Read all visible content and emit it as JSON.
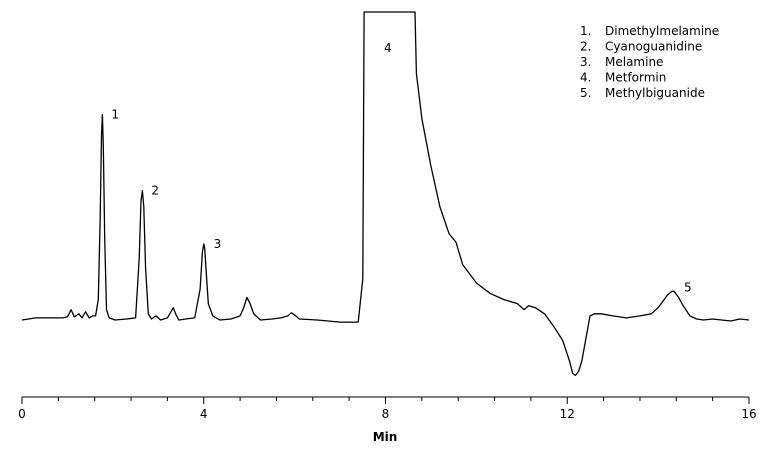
{
  "chart_data": {
    "type": "line",
    "title": "",
    "xlabel": "Min",
    "ylabel": "",
    "xlim": [
      0,
      16
    ],
    "ylim": [
      -0.35,
      1.7
    ],
    "x_ticks": [
      0,
      4,
      8,
      12,
      16
    ],
    "x_tick_labels": [
      "0",
      "4",
      "8",
      "12",
      "16"
    ],
    "x_minor_step": 0.8,
    "grid": false,
    "legend_position": "top-right",
    "line_color": "#000000",
    "legend": [
      {
        "number": "1.",
        "name": "Dimethylmelamine"
      },
      {
        "number": "2.",
        "name": "Cyanoguanidine"
      },
      {
        "number": "3.",
        "name": "Melamine"
      },
      {
        "number": "4.",
        "name": "Metformin"
      },
      {
        "number": "5.",
        "name": "Methylbiguanide"
      }
    ],
    "peaks": [
      {
        "label": "1",
        "x": 1.77,
        "y": 1.0
      },
      {
        "label": "2",
        "x": 2.65,
        "y": 0.63
      },
      {
        "label": "3",
        "x": 4.02,
        "y": 0.37
      },
      {
        "label": "4",
        "x": 8.05,
        "y": 1.5
      },
      {
        "label": "5",
        "x": 14.35,
        "y": 0.14
      }
    ],
    "series": [
      {
        "x": [
          0.0,
          0.3,
          0.6,
          0.9,
          1.0,
          1.08,
          1.15,
          1.25,
          1.32,
          1.4,
          1.48,
          1.55,
          1.62,
          1.68,
          1.72,
          1.75,
          1.77,
          1.79,
          1.82,
          1.86,
          1.92,
          2.05,
          2.3,
          2.5,
          2.58,
          2.62,
          2.65,
          2.68,
          2.72,
          2.78,
          2.85,
          2.95,
          3.05,
          3.2,
          3.28,
          3.33,
          3.38,
          3.45,
          3.6,
          3.8,
          3.92,
          3.97,
          4.0,
          4.02,
          4.05,
          4.1,
          4.2,
          4.35,
          4.6,
          4.8,
          4.88,
          4.95,
          5.02,
          5.1,
          5.25,
          5.5,
          5.7,
          5.85,
          5.93,
          6.0,
          6.1,
          6.5,
          7.0,
          7.4,
          7.5,
          7.53,
          8.65,
          8.68,
          8.8,
          9.0,
          9.2,
          9.4,
          9.55,
          9.7,
          10.0,
          10.3,
          10.6,
          10.9,
          11.05,
          11.15,
          11.3,
          11.5,
          11.7,
          11.9,
          12.05,
          12.12,
          12.18,
          12.25,
          12.32,
          12.42,
          12.5,
          12.6,
          12.75,
          13.0,
          13.3,
          13.6,
          13.85,
          14.0,
          14.1,
          14.2,
          14.3,
          14.35,
          14.45,
          14.55,
          14.7,
          14.85,
          15.0,
          15.2,
          15.4,
          15.6,
          15.8,
          16.0
        ],
        "y": [
          0.0,
          0.01,
          0.01,
          0.01,
          0.015,
          0.05,
          0.015,
          0.03,
          0.01,
          0.04,
          0.01,
          0.02,
          0.02,
          0.1,
          0.5,
          0.9,
          1.0,
          0.85,
          0.4,
          0.05,
          0.01,
          0.0,
          0.005,
          0.01,
          0.3,
          0.58,
          0.63,
          0.55,
          0.25,
          0.03,
          0.005,
          0.02,
          0.0,
          0.01,
          0.04,
          0.06,
          0.03,
          0.0,
          0.005,
          0.01,
          0.15,
          0.33,
          0.37,
          0.35,
          0.25,
          0.08,
          0.02,
          0.0,
          0.005,
          0.02,
          0.06,
          0.11,
          0.08,
          0.03,
          0.0,
          0.005,
          0.01,
          0.02,
          0.035,
          0.025,
          0.005,
          0.0,
          -0.01,
          -0.01,
          0.2,
          1.5,
          1.5,
          1.2,
          0.98,
          0.75,
          0.55,
          0.42,
          0.38,
          0.27,
          0.18,
          0.13,
          0.1,
          0.08,
          0.05,
          0.07,
          0.06,
          0.03,
          -0.03,
          -0.1,
          -0.2,
          -0.26,
          -0.27,
          -0.25,
          -0.2,
          -0.08,
          0.02,
          0.03,
          0.03,
          0.02,
          0.01,
          0.02,
          0.03,
          0.06,
          0.09,
          0.12,
          0.14,
          0.14,
          0.11,
          0.07,
          0.02,
          0.005,
          0.0,
          0.005,
          0.0,
          -0.005,
          0.005,
          0.0
        ]
      }
    ]
  }
}
